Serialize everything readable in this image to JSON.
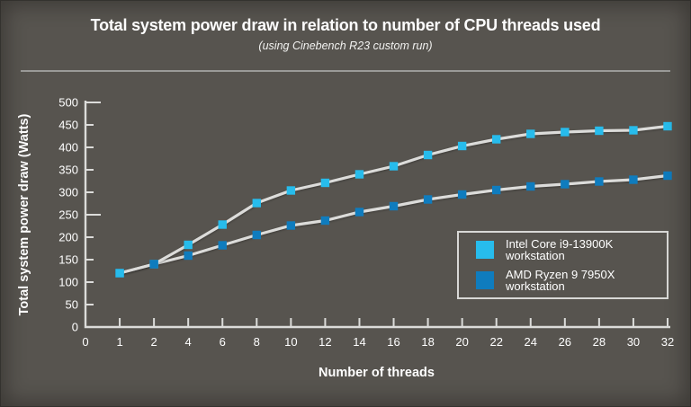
{
  "chart_data": {
    "type": "line",
    "title": "Total system power draw in relation to number of CPU threads used",
    "subtitle": "(using Cinebench R23 custom run)",
    "xlabel": "Number of threads",
    "ylabel": "Total system power draw (Watts)",
    "x_tick_labels": [
      "0",
      "1",
      "2",
      "4",
      "6",
      "8",
      "10",
      "12",
      "14",
      "16",
      "18",
      "20",
      "22",
      "24",
      "26",
      "28",
      "30",
      "32"
    ],
    "threads": [
      1,
      2,
      4,
      6,
      8,
      10,
      12,
      14,
      16,
      18,
      20,
      22,
      24,
      26,
      28,
      30,
      32
    ],
    "ylim": [
      0,
      500
    ],
    "ytick_step": 50,
    "grid": false,
    "legend_position": "inside-bottom-right",
    "marker": "square",
    "series": [
      {
        "name": "Intel Core i9-13900K workstation",
        "color": "#27bcec",
        "values": [
          120,
          140,
          183,
          228,
          276,
          304,
          321,
          340,
          358,
          383,
          403,
          418,
          430,
          434,
          437,
          438,
          447
        ]
      },
      {
        "name": "AMD Ryzen 9 7950X workstation",
        "color": "#0f7cbe",
        "values": [
          120,
          140,
          159,
          182,
          205,
          226,
          237,
          256,
          269,
          284,
          295,
          305,
          313,
          318,
          324,
          328,
          337
        ]
      }
    ]
  },
  "style_colors": {
    "background": "#57544f",
    "axis": "#dcdcda",
    "line": "#dcdcda",
    "text": "#ffffff",
    "divider": "#9a9a98",
    "legend_border": "#d8d8d6"
  }
}
